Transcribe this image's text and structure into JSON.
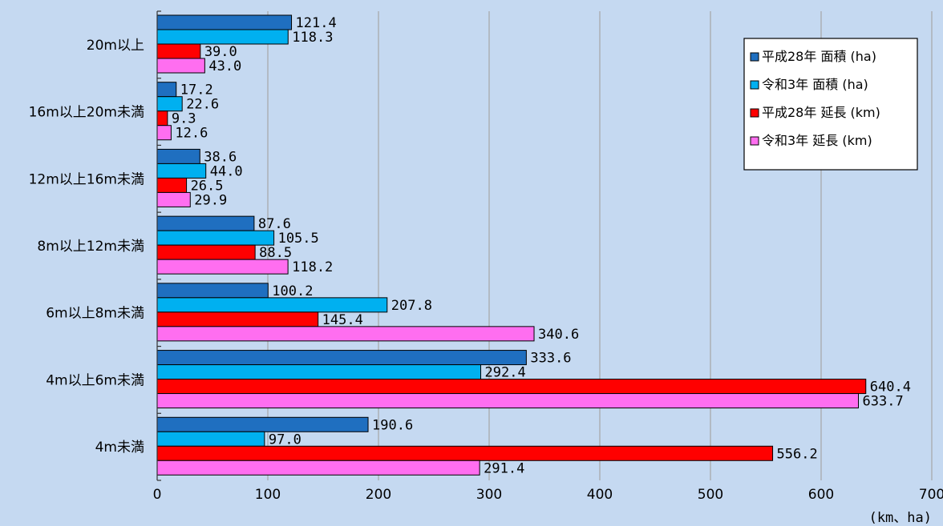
{
  "chart_data": {
    "type": "bar",
    "orientation": "horizontal",
    "categories": [
      "20m以上",
      "16m以上20m未満",
      "12m以上16m未満",
      "8m以上12m未満",
      "6m以上8m未満",
      "4m以上6m未満",
      "4m未満"
    ],
    "series": [
      {
        "name": "平成28年 面積 (ha)",
        "color": "#1f6fc0",
        "values": [
          121.4,
          17.2,
          38.6,
          87.6,
          100.2,
          333.6,
          190.6
        ],
        "labels": [
          "121.4",
          "17.2",
          "38.6",
          "87.6",
          "100.2",
          "333.6",
          "190.6"
        ]
      },
      {
        "name": "令和3年 面積 (ha)",
        "color": "#00b0f0",
        "values": [
          118.3,
          22.6,
          44.0,
          105.5,
          207.8,
          292.4,
          97.0
        ],
        "labels": [
          "118.3",
          "22.6",
          "44.0",
          "105.5",
          "207.8",
          "292.4",
          "97.0"
        ]
      },
      {
        "name": "平成28年 延長 (km)",
        "color": "#ff0000",
        "values": [
          39.0,
          9.3,
          26.5,
          88.5,
          145.4,
          640.4,
          556.2
        ],
        "labels": [
          "39.0",
          "9.3",
          "26.5",
          "88.5",
          "145.4",
          "640.4",
          "556.2"
        ]
      },
      {
        "name": "令和3年 延長 (km)",
        "color": "#ff6ef0",
        "values": [
          43.0,
          12.6,
          29.9,
          118.2,
          340.6,
          633.7,
          291.4
        ],
        "labels": [
          "43.0",
          "12.6",
          "29.9",
          "118.2",
          "340.6",
          "633.7",
          "291.4"
        ]
      }
    ],
    "xlim": [
      0,
      700
    ],
    "x_ticks": [
      "0",
      "100",
      "200",
      "300",
      "400",
      "500",
      "600",
      "700"
    ],
    "xunit": "(km、ha)",
    "grid": "vertical",
    "legend_position": "top-right"
  }
}
